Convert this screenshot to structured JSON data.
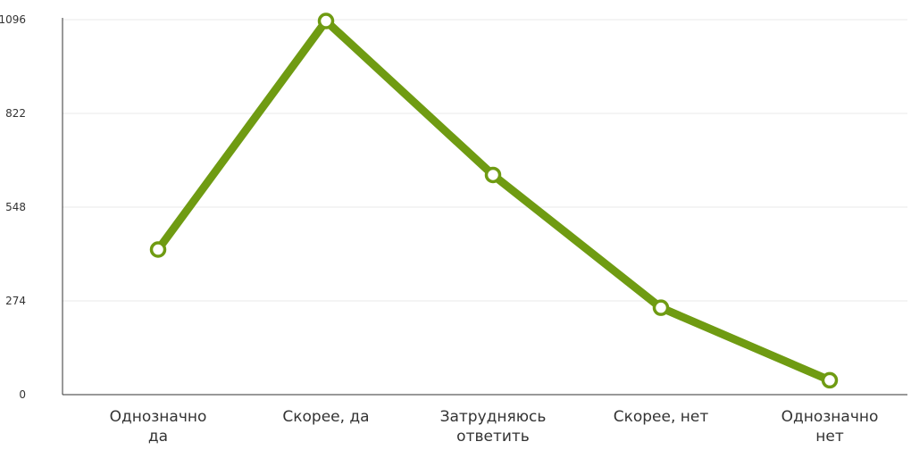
{
  "chart_data": {
    "type": "line",
    "title": "",
    "xlabel": "",
    "ylabel": "",
    "categories": [
      [
        "Однозначно",
        "да"
      ],
      [
        "Скорее, да"
      ],
      [
        "Затрудняюсь",
        "ответить"
      ],
      [
        "Скорее, нет"
      ],
      [
        "Однозначно",
        "нет"
      ]
    ],
    "series": [
      {
        "values": [
          424,
          1092,
          642,
          254,
          42
        ]
      }
    ],
    "y_ticks": [
      "0",
      "274",
      "548",
      "822",
      "1096"
    ],
    "ylim": [
      0,
      1096
    ],
    "grid": true,
    "colors": {
      "line": "#6f9b12",
      "marker_fill": "#ffffff",
      "grid": "#e8e8e8",
      "axis": "#333333",
      "text": "#333333"
    }
  }
}
